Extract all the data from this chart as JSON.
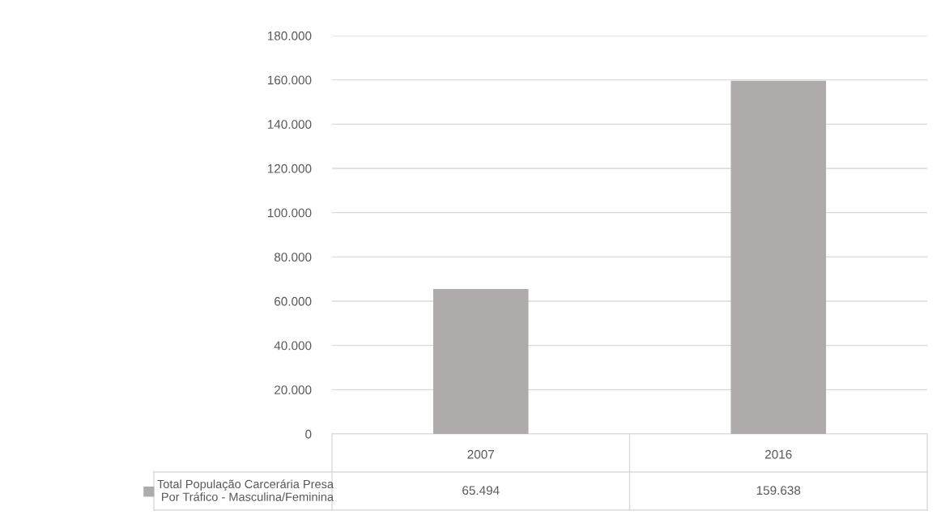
{
  "chart_data": {
    "type": "bar",
    "categories": [
      "2007",
      "2016"
    ],
    "series": [
      {
        "name": "Total População Carcerária Presa Por Tráfico - Masculina/Feminina",
        "color": "#afabab",
        "values": [
          65494,
          159638
        ],
        "value_labels": [
          "65.494",
          "159.638"
        ]
      }
    ],
    "ylim": [
      0,
      180000
    ],
    "yticks": [
      {
        "value": 0,
        "label": "0"
      },
      {
        "value": 20000,
        "label": "20.000"
      },
      {
        "value": 40000,
        "label": "40.000"
      },
      {
        "value": 60000,
        "label": "60.000"
      },
      {
        "value": 80000,
        "label": "80.000"
      },
      {
        "value": 100000,
        "label": "100.000"
      },
      {
        "value": 120000,
        "label": "120.000"
      },
      {
        "value": 140000,
        "label": "140.000"
      },
      {
        "value": 160000,
        "label": "160.000"
      },
      {
        "value": 180000,
        "label": "180.000"
      }
    ],
    "grid": "y",
    "legend": "bottom"
  }
}
